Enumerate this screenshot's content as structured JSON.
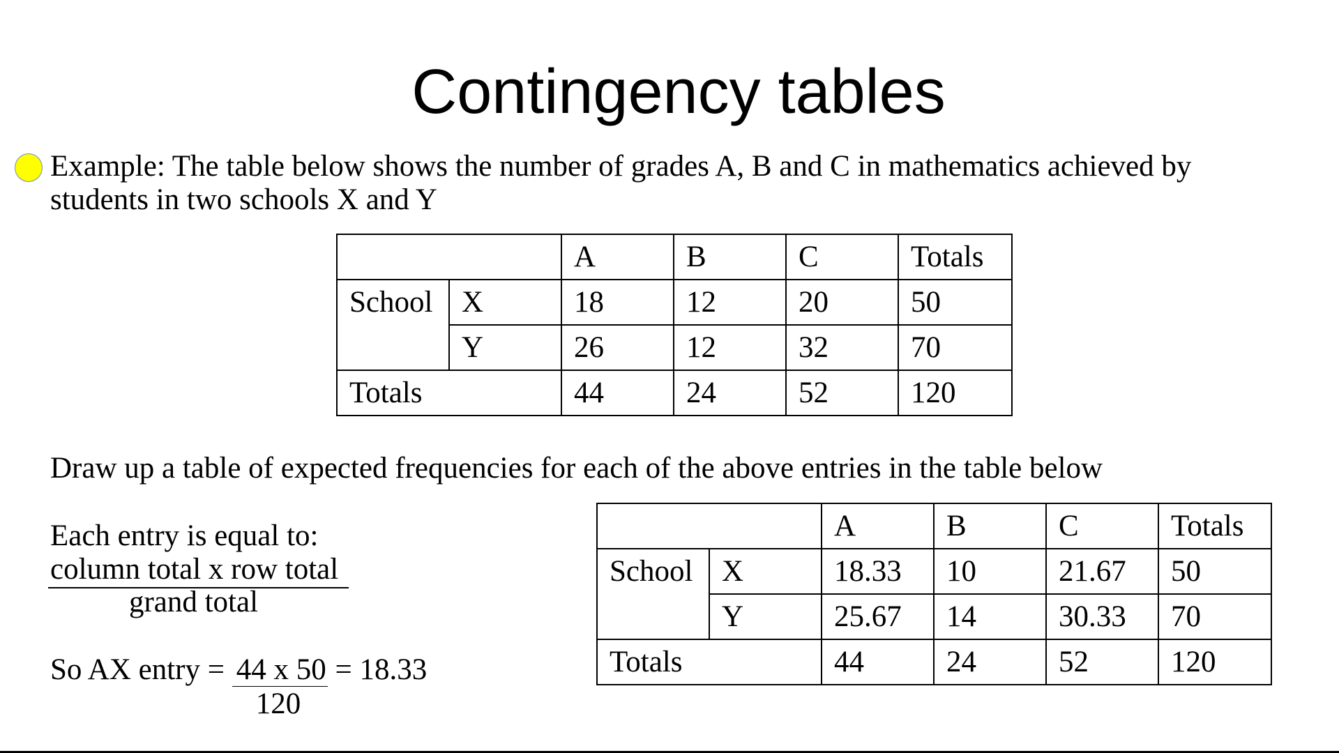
{
  "title": "Contingency tables",
  "bullet_color": "#ffff00",
  "intro": {
    "line1": "Example: The table below shows the number of grades A, B and C in mathematics achieved by",
    "line2": "students in two schools X and Y"
  },
  "observed_table": {
    "headers": [
      "A",
      "B",
      "C",
      "Totals"
    ],
    "school_label": "School",
    "rows": [
      {
        "label": "X",
        "values": [
          "18",
          "12",
          "20",
          "50"
        ]
      },
      {
        "label": "Y",
        "values": [
          "26",
          "12",
          "32",
          "70"
        ]
      }
    ],
    "totals_label": "Totals",
    "totals": [
      "44",
      "24",
      "52",
      "120"
    ]
  },
  "instruction": "Draw up a table of expected frequencies for each of the above entries in the table below",
  "formula": {
    "intro": "Each entry is equal to:",
    "numerator": "column total x row total",
    "denominator": "grand total"
  },
  "example_calc": {
    "prefix": "So AX entry =",
    "numerator": "44 x 50",
    "result": "= 18.33",
    "denominator": "120"
  },
  "expected_table": {
    "headers": [
      "A",
      "B",
      "C",
      "Totals"
    ],
    "school_label": "School",
    "rows": [
      {
        "label": "X",
        "values": [
          "18.33",
          "10",
          "21.67",
          "50"
        ]
      },
      {
        "label": "Y",
        "values": [
          "25.67",
          "14",
          "30.33",
          "70"
        ]
      }
    ],
    "totals_label": "Totals",
    "totals": [
      "44",
      "24",
      "52",
      "120"
    ]
  }
}
